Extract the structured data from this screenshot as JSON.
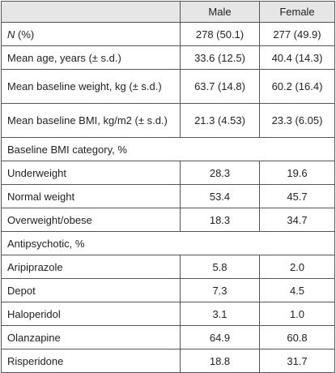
{
  "table": {
    "header": [
      "Male",
      "Female"
    ],
    "rows": [
      {
        "label_em": "N",
        "label": " (%)",
        "male": "278 (50.1)",
        "female": "277 (49.9)"
      },
      {
        "label": "Mean age, years (± s.d.)",
        "male": "33.6 (12.5)",
        "female": "40.4 (14.3)"
      },
      {
        "label": "Mean baseline weight, kg (± s.d.)",
        "male": "63.7 (14.8)",
        "female": "60.2 (16.4)"
      },
      {
        "label": "Mean baseline BMI, kg/m2 (± s.d.)",
        "male": "21.3 (4.53)",
        "female": "23.3 (6.05)"
      },
      {
        "section": "Baseline BMI category, %"
      },
      {
        "label": "Underweight",
        "male": "28.3",
        "female": "19.6"
      },
      {
        "label": "Normal weight",
        "male": "53.4",
        "female": "45.7"
      },
      {
        "label": "Overweight/obese",
        "male": "18.3",
        "female": "34.7"
      },
      {
        "section": "Antipsychotic, %"
      },
      {
        "label": "Aripiprazole",
        "male": "5.8",
        "female": "2.0"
      },
      {
        "label": "Depot",
        "male": "7.3",
        "female": "4.5"
      },
      {
        "label": "Haloperidol",
        "male": "3.1",
        "female": "1.0"
      },
      {
        "label": "Olanzapine",
        "male": "64.9",
        "female": "60.8"
      },
      {
        "label": "Risperidone",
        "male": "18.8",
        "female": "31.7"
      }
    ]
  }
}
